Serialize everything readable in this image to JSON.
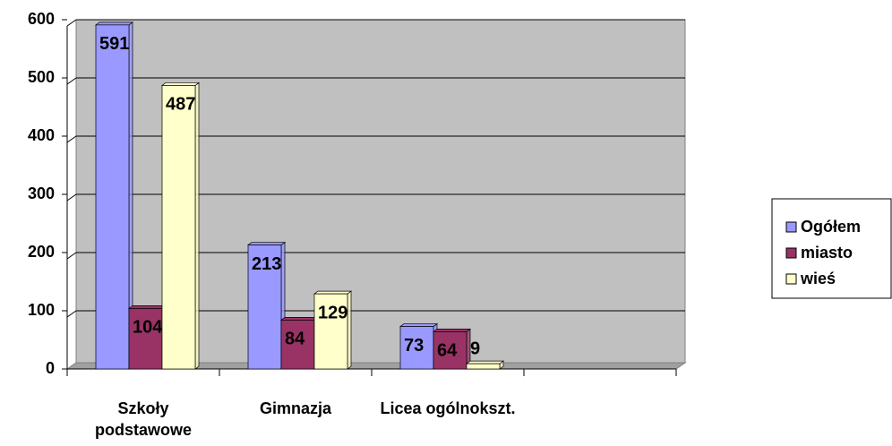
{
  "chart_data": {
    "type": "bar",
    "categories": [
      "Szkoły podstawowe",
      "Gimnazja",
      "Licea ogólnokszt.",
      null
    ],
    "series": [
      {
        "name": "Ogółem",
        "color": "#9999ff",
        "values": [
          591,
          213,
          73,
          null
        ]
      },
      {
        "name": "miasto",
        "color": "#993366",
        "values": [
          104,
          84,
          64,
          null
        ]
      },
      {
        "name": "wieś",
        "color": "#ffffcc",
        "values": [
          487,
          129,
          9,
          null
        ]
      }
    ],
    "ylim": [
      0,
      600
    ],
    "yticks": [
      0,
      100,
      200,
      300,
      400,
      500,
      600
    ],
    "grid": true,
    "legend": "right"
  }
}
